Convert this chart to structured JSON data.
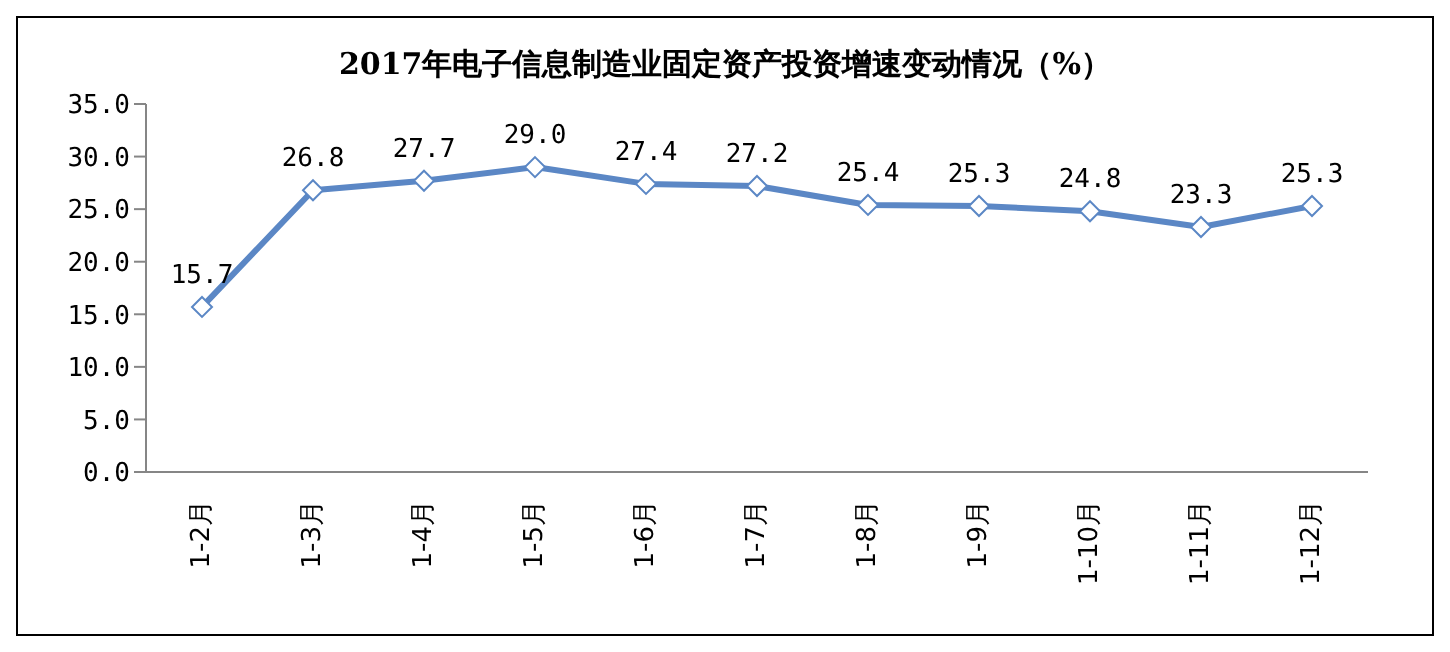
{
  "chart_data": {
    "type": "line",
    "title": "2017年电子信息制造业固定资产投资增速变动情况（%）",
    "categories": [
      "1-2月",
      "1-3月",
      "1-4月",
      "1-5月",
      "1-6月",
      "1-7月",
      "1-8月",
      "1-9月",
      "1-10月",
      "1-11月",
      "1-12月"
    ],
    "series": [
      {
        "color": "#5b87c5",
        "values": [
          15.7,
          26.8,
          27.7,
          29.0,
          27.4,
          27.2,
          25.4,
          25.3,
          24.8,
          23.3,
          25.3
        ],
        "value_labels": [
          "15.7",
          "26.8",
          "27.7",
          "29.0",
          "27.4",
          "27.2",
          "25.4",
          "25.3",
          "24.8",
          "23.3",
          "25.3"
        ]
      }
    ],
    "ylim": [
      0,
      35
    ],
    "yticks": [
      {
        "value": 0,
        "label": "0.0"
      },
      {
        "value": 5,
        "label": "5.0"
      },
      {
        "value": 10,
        "label": "10.0"
      },
      {
        "value": 15,
        "label": "15.0"
      },
      {
        "value": 20,
        "label": "20.0"
      },
      {
        "value": 25,
        "label": "25.0"
      },
      {
        "value": 30,
        "label": "30.0"
      },
      {
        "value": 35,
        "label": "35.0"
      }
    ],
    "marker": "diamond",
    "line_style": "solid",
    "grid": false
  }
}
